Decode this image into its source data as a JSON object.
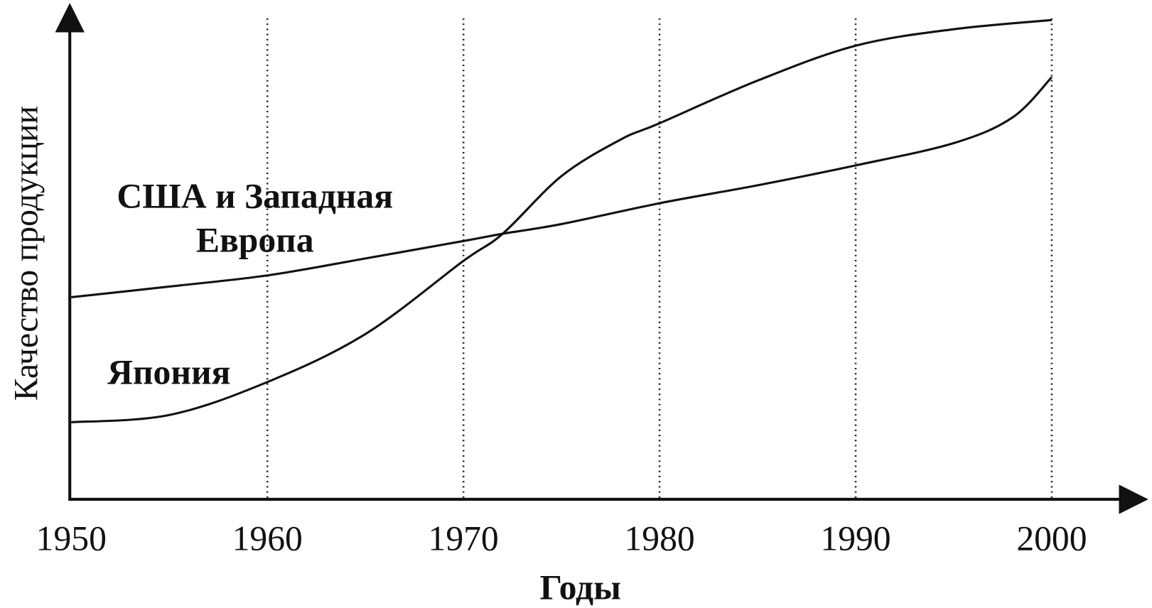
{
  "chart_data": {
    "type": "line",
    "x_label": "Годы",
    "y_label": "Качество продукции",
    "xlim": [
      1950,
      2005
    ],
    "xticks": [
      1950,
      1960,
      1970,
      1980,
      1990,
      2000
    ],
    "ylim": [
      0,
      100
    ],
    "grid": true,
    "series": [
      {
        "name": "США и Западная Европа",
        "color": "#111111",
        "x": [
          1950,
          1955,
          1960,
          1965,
          1970,
          1972,
          1975,
          1980,
          1985,
          1990,
          1995,
          1998,
          2000
        ],
        "values": [
          41.7,
          43.9,
          46.2,
          49.7,
          53.3,
          54.8,
          56.8,
          61.1,
          64.8,
          68.9,
          73.5,
          78.8,
          87.1
        ]
      },
      {
        "name": "Япония",
        "color": "#111111",
        "x": [
          1950,
          1955,
          1960,
          1965,
          1970,
          1972,
          1975,
          1978,
          1980,
          1985,
          1990,
          1995,
          2000
        ],
        "values": [
          15.9,
          17.4,
          24.2,
          34.1,
          49.2,
          54.8,
          66.7,
          74.2,
          77.6,
          86.4,
          93.6,
          97.0,
          98.9
        ]
      }
    ]
  }
}
